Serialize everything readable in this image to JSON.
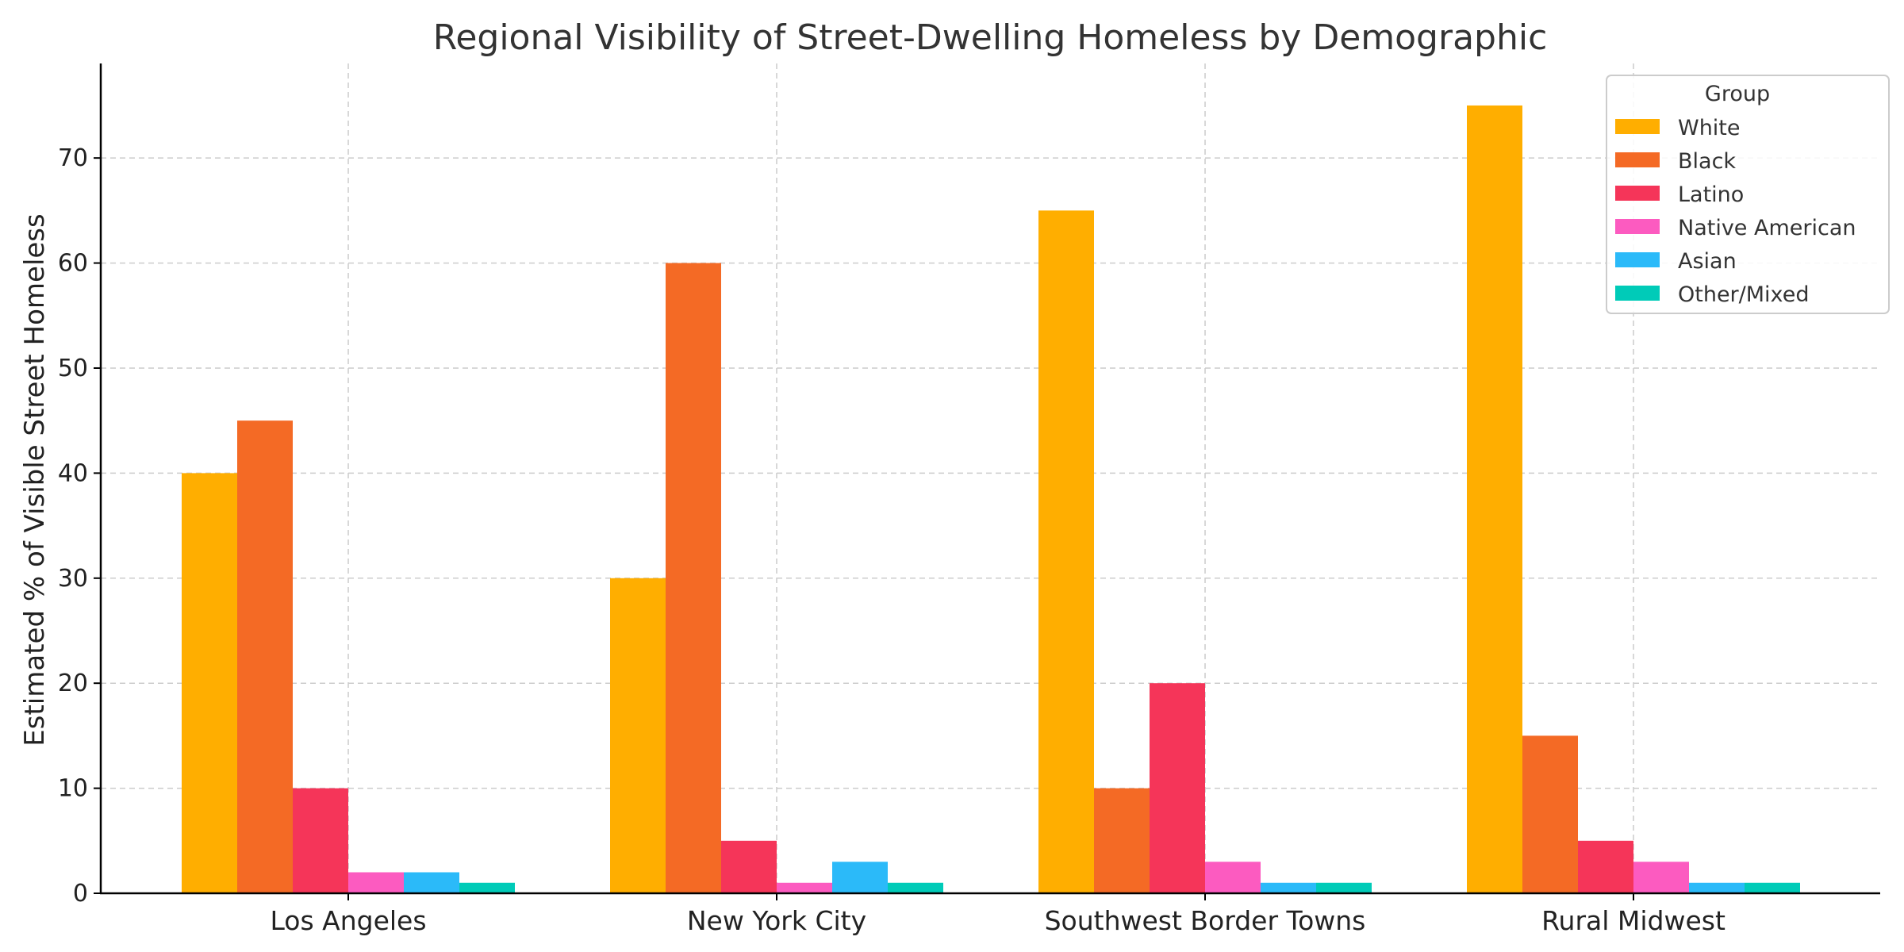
{
  "chart_data": {
    "type": "bar",
    "title": "Regional Visibility of Street-Dwelling Homeless by Demographic",
    "xlabel": "",
    "ylabel": "Estimated % of Visible Street Homeless",
    "categories": [
      "Los Angeles",
      "New York City",
      "Southwest Border Towns",
      "Rural Midwest"
    ],
    "ylim": [
      0,
      79
    ],
    "yticks": [
      0,
      10,
      20,
      30,
      40,
      50,
      60,
      70
    ],
    "grid": true,
    "legend": {
      "title": "Group",
      "position": "top-right"
    },
    "series": [
      {
        "name": "White",
        "color": "#FFAE00",
        "values": [
          40,
          30,
          65,
          75
        ]
      },
      {
        "name": "Black",
        "color": "#F46A25",
        "values": [
          45,
          60,
          10,
          15
        ]
      },
      {
        "name": "Latino",
        "color": "#F53559",
        "values": [
          10,
          5,
          20,
          5
        ]
      },
      {
        "name": "Native American",
        "color": "#FC5BC0",
        "values": [
          2,
          1,
          3,
          3
        ]
      },
      {
        "name": "Asian",
        "color": "#2BBAF9",
        "values": [
          2,
          3,
          1,
          1
        ]
      },
      {
        "name": "Other/Mixed",
        "color": "#00CBB8",
        "values": [
          1,
          1,
          1,
          1
        ]
      }
    ]
  }
}
